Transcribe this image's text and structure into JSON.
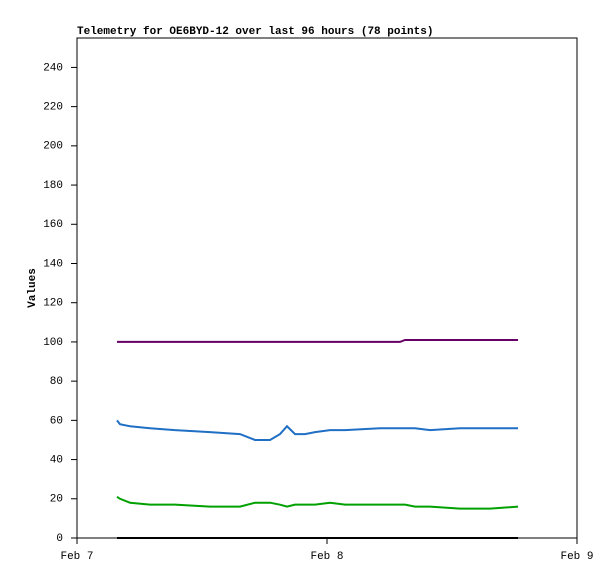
{
  "chart_data": {
    "type": "line",
    "title": "Telemetry for OE6BYD-12 over last 96 hours (78 points)",
    "y_label": "Values",
    "x": [
      3.84,
      4.13,
      5.09,
      7.01,
      9.41,
      12.77,
      15.65,
      17.09,
      18.53,
      19.49,
      20.16,
      20.93,
      21.89,
      22.85,
      24.29,
      25.73,
      29.09,
      31.01,
      31.49,
      32.45,
      33.89,
      36.77,
      39.65,
      42.34
    ],
    "xlim": [
      0,
      48
    ],
    "xticks": [
      {
        "value": 0,
        "label": "Feb 7"
      },
      {
        "value": 24,
        "label": "Feb 8"
      },
      {
        "value": 48,
        "label": "Feb 9"
      }
    ],
    "ylim": [
      0,
      255
    ],
    "yticks": [
      0,
      20,
      40,
      60,
      80,
      100,
      120,
      140,
      160,
      180,
      200,
      220,
      240
    ],
    "grid": false,
    "series": [
      {
        "color": "#660066",
        "values": [
          100,
          100,
          100,
          100,
          100,
          100,
          100,
          100,
          100,
          100,
          100,
          100,
          100,
          100,
          100,
          100,
          100,
          100,
          101,
          101,
          101,
          101,
          101,
          101
        ]
      },
      {
        "color": "#1f6fc5",
        "values": [
          60,
          58,
          57,
          56,
          55,
          54,
          53,
          50,
          50,
          53,
          57,
          53,
          53,
          54,
          55,
          55,
          56,
          56,
          56,
          56,
          55,
          56,
          56,
          56
        ]
      },
      {
        "color": "#00a000",
        "values": [
          21,
          20,
          18,
          17,
          17,
          16,
          16,
          18,
          18,
          17,
          16,
          17,
          17,
          17,
          18,
          17,
          17,
          17,
          17,
          16,
          16,
          15,
          15,
          16
        ]
      },
      {
        "color": "#000000",
        "values": [
          0,
          0,
          0,
          0,
          0,
          0,
          0,
          0,
          0,
          0,
          0,
          0,
          0,
          0,
          0,
          0,
          0,
          0,
          0,
          0,
          0,
          0,
          0,
          0
        ]
      }
    ]
  }
}
